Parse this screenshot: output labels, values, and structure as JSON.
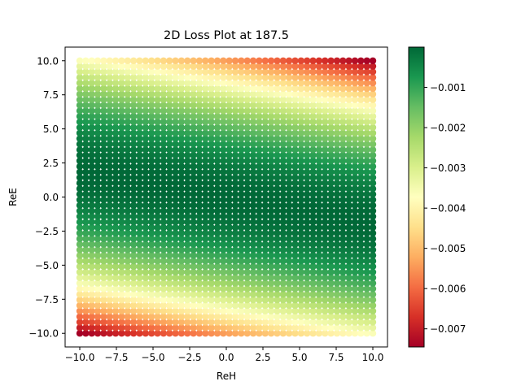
{
  "chart_data": {
    "type": "scatter",
    "title": "2D Loss Plot at 187.5",
    "xlabel": "ReH",
    "ylabel": "ReE",
    "xlim": [
      -11.0,
      11.0
    ],
    "ylim": [
      -11.0,
      11.0
    ],
    "x_ticks": [
      -10.0,
      -7.5,
      -5.0,
      -2.5,
      0.0,
      2.5,
      5.0,
      7.5,
      10.0
    ],
    "y_ticks": [
      -10.0,
      -7.5,
      -5.0,
      -2.5,
      0.0,
      2.5,
      5.0,
      7.5,
      10.0
    ],
    "x_tick_labels": [
      "−10.0",
      "−7.5",
      "−5.0",
      "−2.5",
      "0.0",
      "2.5",
      "5.0",
      "7.5",
      "10.0"
    ],
    "y_tick_labels": [
      "−10.0",
      "−7.5",
      "−5.0",
      "−2.5",
      "0.0",
      "2.5",
      "5.0",
      "7.5",
      "10.0"
    ],
    "grid": false,
    "grid_points": {
      "x": {
        "start": -10.0,
        "stop": 10.0,
        "count": 50
      },
      "y": {
        "start": -10.0,
        "stop": 10.0,
        "count": 50
      }
    },
    "surface_model": {
      "description": "value = -0.0075 * ((y + 0.18*x) / 11.8)^2",
      "slope": 0.18,
      "scale": 11.8,
      "min": -0.0075
    },
    "colormap": "RdYlGn",
    "colormap_stops": [
      "#a50026",
      "#d73027",
      "#f46d43",
      "#fdae61",
      "#fee08b",
      "#ffffbf",
      "#d9ef8b",
      "#a6d96a",
      "#66bd63",
      "#1a9850",
      "#006837"
    ],
    "colorbar": {
      "min": -0.00745,
      "max": 0.0,
      "ticks": [
        -0.007,
        -0.006,
        -0.005,
        -0.004,
        -0.003,
        -0.002,
        -0.001
      ],
      "tick_labels": [
        "−0.007",
        "−0.006",
        "−0.005",
        "−0.004",
        "−0.003",
        "−0.002",
        "−0.001"
      ]
    },
    "marker_color": "#000000"
  }
}
